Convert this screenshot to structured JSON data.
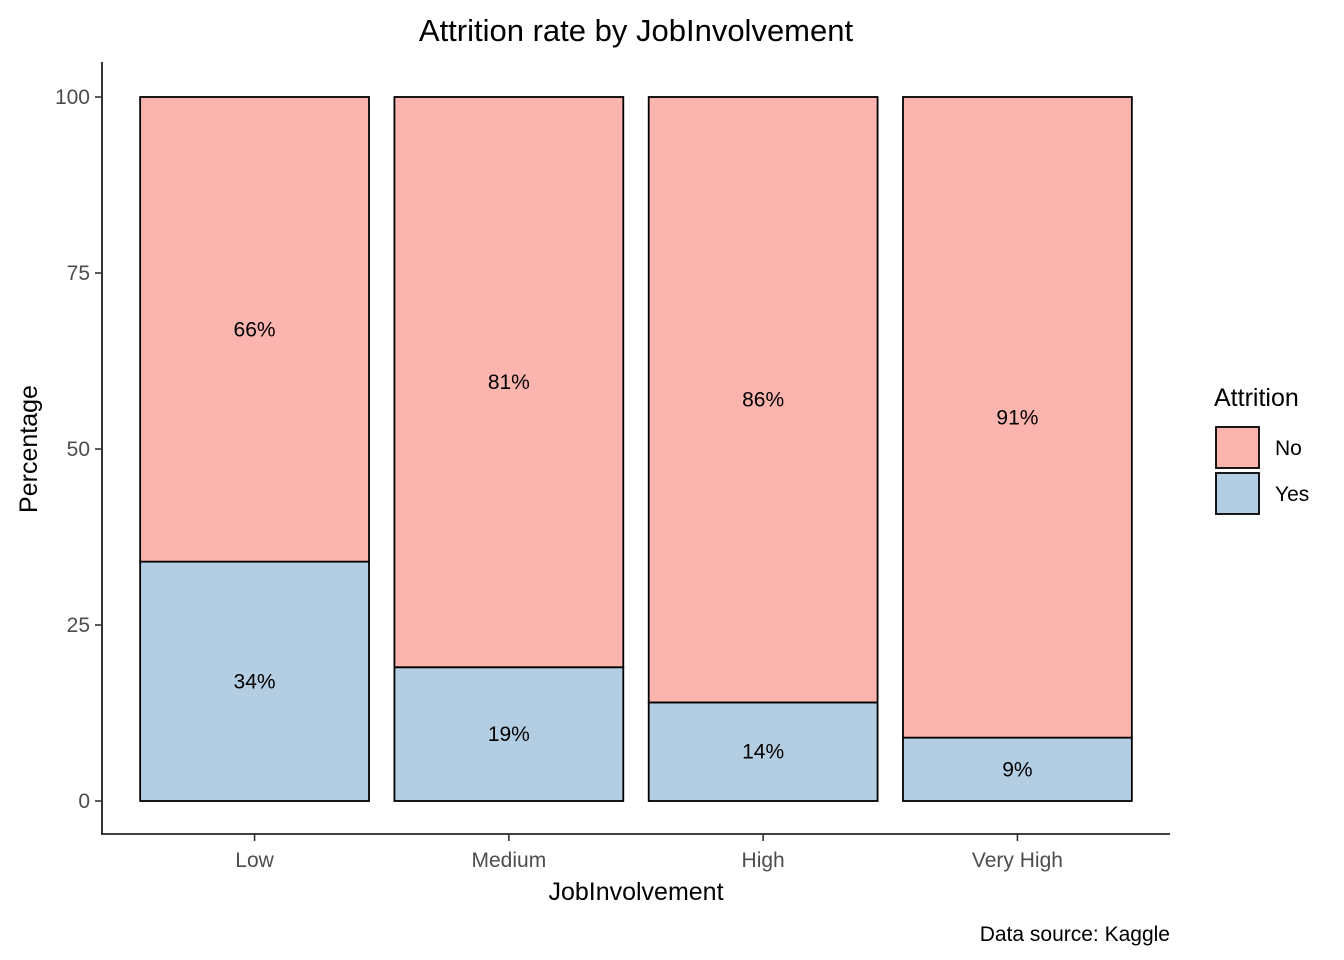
{
  "chart_data": {
    "type": "bar",
    "stacked": true,
    "title": "Attrition rate by JobInvolvement",
    "xlabel": "JobInvolvement",
    "ylabel": "Percentage",
    "caption": "Data source: Kaggle",
    "categories": [
      "Low",
      "Medium",
      "High",
      "Very High"
    ],
    "series": [
      {
        "name": "Yes",
        "values": [
          34,
          19,
          14,
          9
        ],
        "labels": [
          "34%",
          "19%",
          "14%",
          "9%"
        ],
        "color": "#b3cde3"
      },
      {
        "name": "No",
        "values": [
          66,
          81,
          86,
          91
        ],
        "labels": [
          "66%",
          "81%",
          "86%",
          "91%"
        ],
        "color": "#fbb4ae"
      }
    ],
    "ylim": [
      0,
      100
    ],
    "yticks": [
      0,
      25,
      50,
      75,
      100
    ],
    "grid": false,
    "legend": {
      "title": "Attrition",
      "position": "right",
      "entries": [
        {
          "name": "No",
          "color": "#fbb4ae"
        },
        {
          "name": "Yes",
          "color": "#b3cde3"
        }
      ]
    }
  }
}
